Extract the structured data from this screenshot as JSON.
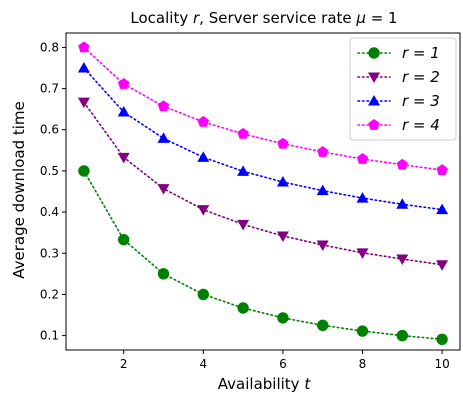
{
  "chart_data": {
    "type": "line",
    "title": "Locality r,  Server service rate μ = 1",
    "title_parts": {
      "prefix": "Locality ",
      "r_symbol": "r",
      "middle": ",  Server service rate ",
      "mu_symbol": "μ",
      "suffix": " = 1"
    },
    "xlabel": "Availability t",
    "xlabel_parts": {
      "text": "Availability ",
      "symbol": "t"
    },
    "ylabel": "Average download time",
    "xlim": [
      0.55,
      10.45
    ],
    "ylim": [
      0.065,
      0.835
    ],
    "xticks": [
      2,
      4,
      6,
      8,
      10
    ],
    "yticks": [
      0.1,
      0.2,
      0.3,
      0.4,
      0.5,
      0.6,
      0.7,
      0.8
    ],
    "legend_position": "top-right",
    "grid": false,
    "x": [
      1,
      2,
      3,
      4,
      5,
      6,
      7,
      8,
      9,
      10
    ],
    "series": [
      {
        "name": "r = 1",
        "marker": "circle",
        "color": "#008000",
        "values": [
          0.5,
          0.333,
          0.25,
          0.2,
          0.167,
          0.143,
          0.125,
          0.111,
          0.1,
          0.091
        ]
      },
      {
        "name": "r = 2",
        "marker": "triangle-down",
        "color": "#800080",
        "values": [
          0.667,
          0.533,
          0.457,
          0.406,
          0.37,
          0.342,
          0.32,
          0.301,
          0.286,
          0.272
        ]
      },
      {
        "name": "r = 3",
        "marker": "triangle-up",
        "color": "#0000ff",
        "values": [
          0.75,
          0.643,
          0.579,
          0.533,
          0.499,
          0.473,
          0.452,
          0.434,
          0.419,
          0.406
        ]
      },
      {
        "name": "r = 4",
        "marker": "pentagon",
        "color": "#ff00ff",
        "values": [
          0.8,
          0.711,
          0.657,
          0.619,
          0.59,
          0.566,
          0.546,
          0.529,
          0.515,
          0.502
        ]
      }
    ]
  }
}
